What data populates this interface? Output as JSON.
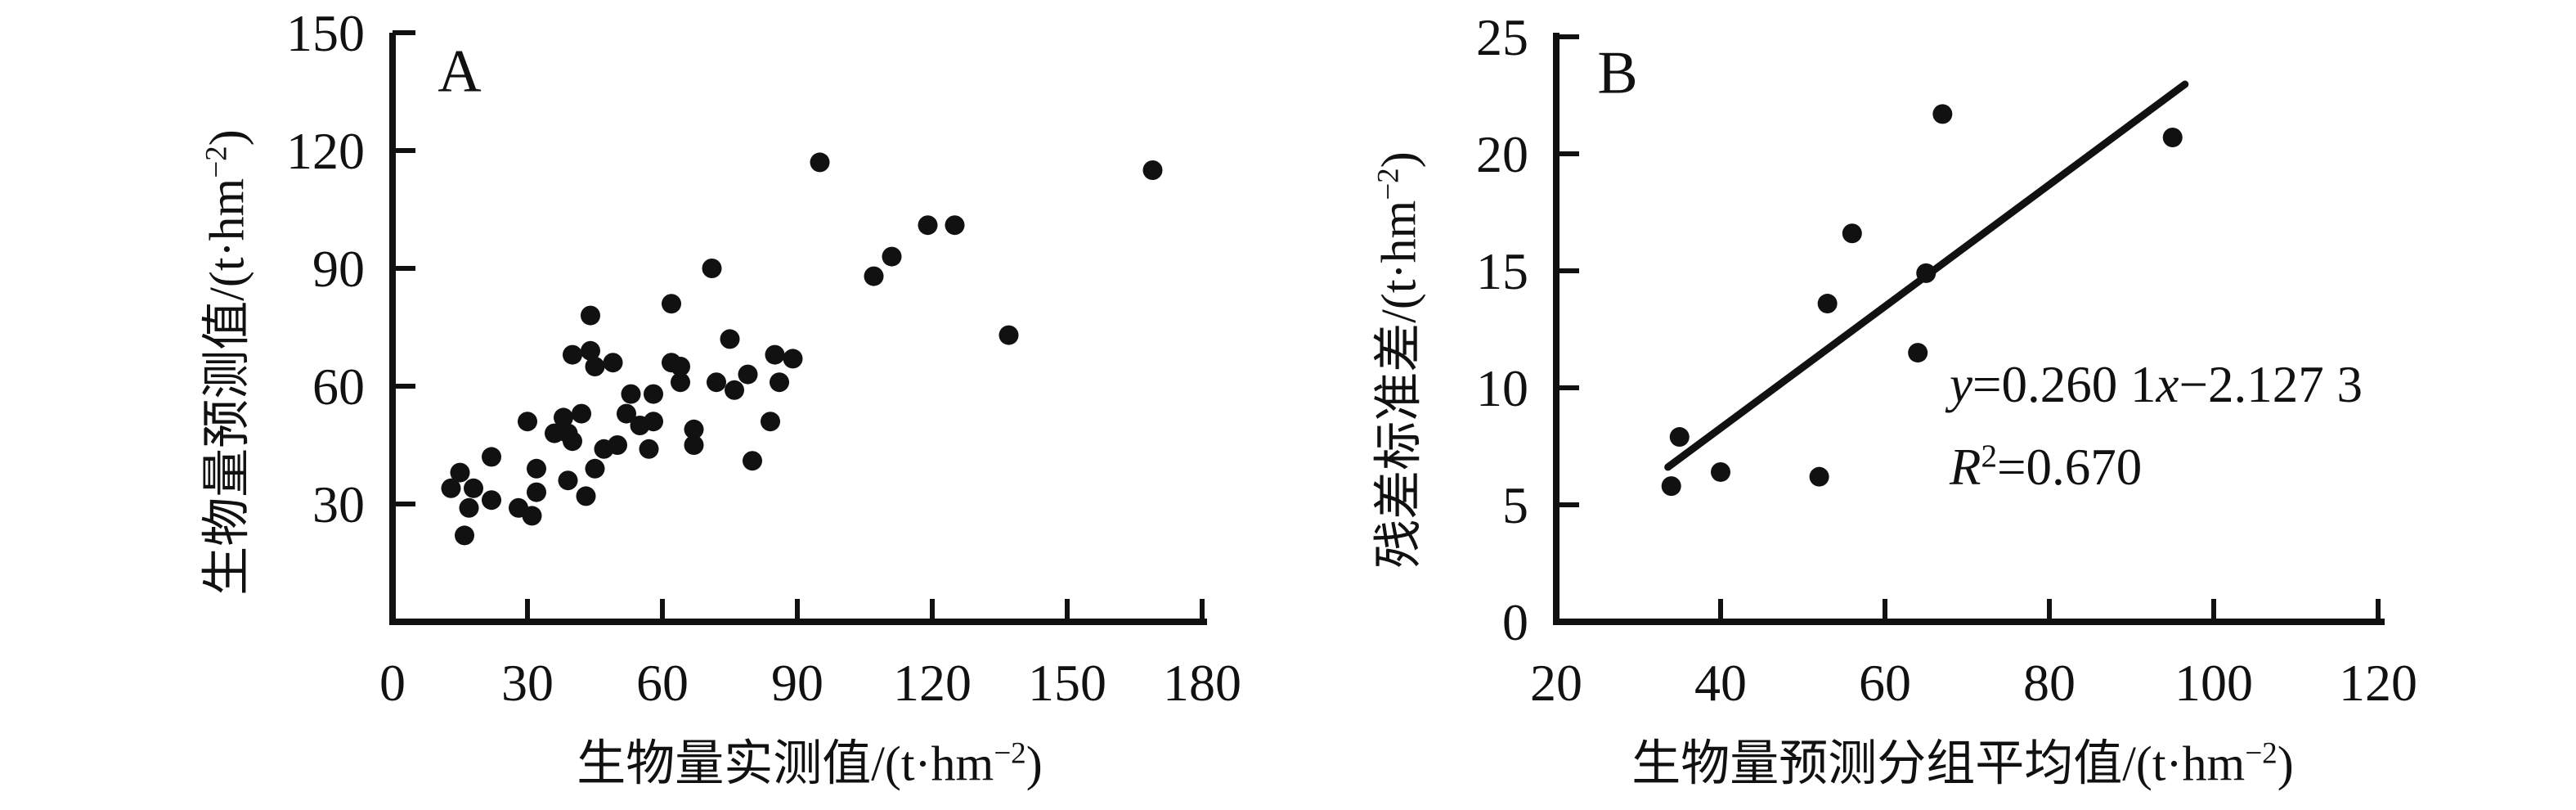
{
  "figure": {
    "background_color": "#ffffff",
    "ink_color": "#111111"
  },
  "chart_data": [
    {
      "type": "scatter",
      "panel_label": "A",
      "xlabel_text": "生物量实测值",
      "ylabel_text": "生物量预测值",
      "unit_pre": "/(t·hm",
      "unit_sup": "−2",
      "unit_post": ")",
      "xlim": [
        0,
        180
      ],
      "ylim": [
        0,
        150
      ],
      "xticks": [
        0,
        30,
        60,
        90,
        120,
        150,
        180
      ],
      "yticks": [
        30,
        60,
        90,
        120,
        150
      ],
      "grid": false,
      "legend": "none",
      "marker": "filled-black-circle",
      "points": [
        [
          95,
          117
        ],
        [
          169,
          115
        ],
        [
          119,
          101
        ],
        [
          125,
          101
        ],
        [
          111,
          93
        ],
        [
          107,
          88
        ],
        [
          137,
          73
        ],
        [
          71,
          90
        ],
        [
          62,
          81
        ],
        [
          44,
          78
        ],
        [
          75,
          72
        ],
        [
          40,
          68
        ],
        [
          44,
          69
        ],
        [
          45,
          65
        ],
        [
          49,
          66
        ],
        [
          85,
          68
        ],
        [
          89,
          67
        ],
        [
          62,
          66
        ],
        [
          64,
          65
        ],
        [
          64,
          61
        ],
        [
          72,
          61
        ],
        [
          76,
          59
        ],
        [
          79,
          63
        ],
        [
          86,
          61
        ],
        [
          53,
          58
        ],
        [
          58,
          58
        ],
        [
          52,
          53
        ],
        [
          55,
          50
        ],
        [
          58,
          51
        ],
        [
          84,
          51
        ],
        [
          42,
          53
        ],
        [
          38,
          52
        ],
        [
          36,
          48
        ],
        [
          39,
          48
        ],
        [
          40,
          46
        ],
        [
          30,
          51
        ],
        [
          67,
          49
        ],
        [
          67,
          45
        ],
        [
          50,
          45
        ],
        [
          47,
          44
        ],
        [
          57,
          44
        ],
        [
          80,
          41
        ],
        [
          45,
          39
        ],
        [
          39,
          36
        ],
        [
          32,
          39
        ],
        [
          43,
          32
        ],
        [
          32,
          33
        ],
        [
          28,
          29
        ],
        [
          31,
          27
        ],
        [
          22,
          42
        ],
        [
          15,
          38
        ],
        [
          13,
          34
        ],
        [
          18,
          34
        ],
        [
          22,
          31
        ],
        [
          17,
          29
        ],
        [
          16,
          22
        ]
      ]
    },
    {
      "type": "scatter",
      "panel_label": "B",
      "xlabel_text": "生物量预测分组平均值",
      "ylabel_text": "残差标准差",
      "unit_pre": "/(t·hm",
      "unit_sup": "−2",
      "unit_post": ")",
      "xlim": [
        20,
        120
      ],
      "ylim": [
        0,
        25
      ],
      "xticks": [
        20,
        40,
        60,
        80,
        100,
        120
      ],
      "yticks": [
        0,
        5,
        10,
        15,
        20,
        25
      ],
      "grid": false,
      "legend": "none",
      "marker": "filled-black-circle",
      "points": [
        [
          67,
          21.7
        ],
        [
          95,
          20.7
        ],
        [
          56,
          16.6
        ],
        [
          65,
          14.9
        ],
        [
          53,
          13.6
        ],
        [
          64,
          11.5
        ],
        [
          35,
          7.9
        ],
        [
          40,
          6.4
        ],
        [
          52,
          6.2
        ],
        [
          34,
          5.8
        ]
      ],
      "trendline": {
        "x_start": 33.6,
        "x_end": 96.5,
        "slope": 0.2601,
        "intercept": -2.1273
      },
      "equation_text": "y=0.260 1x−2.127 3",
      "r2_text": "R²=0.670",
      "equation_line1": {
        "lhs": "y",
        "mid": "=0.260 1",
        "xvar": "x",
        "tail": "−2.127 3"
      },
      "equation_line2": {
        "rvar": "R",
        "sup": "2",
        "tail": "=0.670"
      }
    }
  ]
}
